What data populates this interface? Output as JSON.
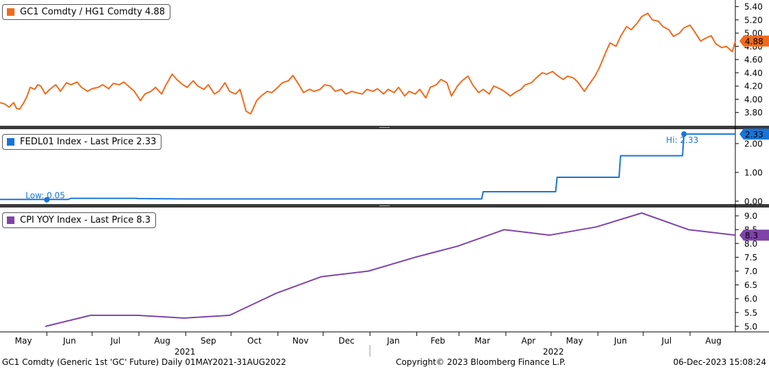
{
  "chart_data": {
    "type": "line",
    "x_range": [
      "2021-05-01",
      "2022-08-31"
    ],
    "x_month_labels": [
      "May",
      "Jun",
      "Jul",
      "Aug",
      "Sep",
      "Oct",
      "Nov",
      "Dec",
      "Jan",
      "Feb",
      "Mar",
      "Apr",
      "May",
      "Jun",
      "Jul",
      "Aug"
    ],
    "x_year_labels": [
      "2021",
      "2022"
    ],
    "panels": [
      {
        "legend": "GC1 Comdty / HG1 Comdty 4.88",
        "color": "#f26a1b",
        "last_label": "4.88",
        "ylim": [
          3.6,
          5.5
        ],
        "yticks": [
          "5.40",
          "5.20",
          "5.00",
          "4.80",
          "4.60",
          "4.40",
          "4.20",
          "4.00",
          "3.80"
        ],
        "series": {
          "x": [
            "2021-05-01",
            "2021-05-04",
            "2021-05-07",
            "2021-05-10",
            "2021-05-12",
            "2021-05-14",
            "2021-05-17",
            "2021-05-19",
            "2021-05-21",
            "2021-05-24",
            "2021-05-26",
            "2021-05-28",
            "2021-05-31",
            "2021-06-03",
            "2021-06-07",
            "2021-06-10",
            "2021-06-14",
            "2021-06-17",
            "2021-06-21",
            "2021-06-24",
            "2021-06-28",
            "2021-07-01",
            "2021-07-05",
            "2021-07-08",
            "2021-07-12",
            "2021-07-15",
            "2021-07-19",
            "2021-07-22",
            "2021-07-26",
            "2021-07-29",
            "2021-08-02",
            "2021-08-05",
            "2021-08-09",
            "2021-08-12",
            "2021-08-16",
            "2021-08-19",
            "2021-08-23",
            "2021-08-26",
            "2021-08-30",
            "2021-09-02",
            "2021-09-06",
            "2021-09-09",
            "2021-09-13",
            "2021-09-16",
            "2021-09-20",
            "2021-09-23",
            "2021-09-27",
            "2021-09-30",
            "2021-10-04",
            "2021-10-07",
            "2021-10-11",
            "2021-10-14",
            "2021-10-18",
            "2021-10-21",
            "2021-10-25",
            "2021-10-28",
            "2021-11-01",
            "2021-11-04",
            "2021-11-08",
            "2021-11-11",
            "2021-11-15",
            "2021-11-18",
            "2021-11-22",
            "2021-11-25",
            "2021-11-29",
            "2021-12-02",
            "2021-12-06",
            "2021-12-09",
            "2021-12-13",
            "2021-12-16",
            "2021-12-20",
            "2021-12-23",
            "2021-12-27",
            "2021-12-30",
            "2022-01-03",
            "2022-01-06",
            "2022-01-10",
            "2022-01-13",
            "2022-01-17",
            "2022-01-20",
            "2022-01-24",
            "2022-01-27",
            "2022-01-31",
            "2022-02-03",
            "2022-02-07",
            "2022-02-10",
            "2022-02-14",
            "2022-02-17",
            "2022-02-21",
            "2022-02-24",
            "2022-02-28",
            "2022-03-03",
            "2022-03-07",
            "2022-03-10",
            "2022-03-14",
            "2022-03-17",
            "2022-03-21",
            "2022-03-24",
            "2022-03-28",
            "2022-03-31",
            "2022-04-04",
            "2022-04-07",
            "2022-04-11",
            "2022-04-14",
            "2022-04-18",
            "2022-04-21",
            "2022-04-25",
            "2022-04-28",
            "2022-05-02",
            "2022-05-05",
            "2022-05-09",
            "2022-05-12",
            "2022-05-16",
            "2022-05-19",
            "2022-05-23",
            "2022-05-26",
            "2022-05-30",
            "2022-06-02",
            "2022-06-06",
            "2022-06-09",
            "2022-06-13",
            "2022-06-16",
            "2022-06-20",
            "2022-06-23",
            "2022-06-27",
            "2022-06-30",
            "2022-07-04",
            "2022-07-07",
            "2022-07-11",
            "2022-07-14",
            "2022-07-18",
            "2022-07-21",
            "2022-07-25",
            "2022-07-28",
            "2022-08-01",
            "2022-08-04",
            "2022-08-08",
            "2022-08-11",
            "2022-08-15",
            "2022-08-18",
            "2022-08-22",
            "2022-08-25",
            "2022-08-29",
            "2022-08-31"
          ],
          "y": [
            3.95,
            3.93,
            3.88,
            3.95,
            3.86,
            3.85,
            3.96,
            4.05,
            4.18,
            4.15,
            4.22,
            4.2,
            4.08,
            4.15,
            4.22,
            4.12,
            4.25,
            4.22,
            4.26,
            4.18,
            4.12,
            4.16,
            4.18,
            4.22,
            4.16,
            4.24,
            4.22,
            4.26,
            4.18,
            4.12,
            3.98,
            4.08,
            4.12,
            4.18,
            4.08,
            4.22,
            4.38,
            4.3,
            4.22,
            4.18,
            4.28,
            4.2,
            4.15,
            4.22,
            4.08,
            4.12,
            4.25,
            4.12,
            4.08,
            4.15,
            3.82,
            3.78,
            3.98,
            4.05,
            4.12,
            4.1,
            4.18,
            4.25,
            4.28,
            4.36,
            4.22,
            4.1,
            4.15,
            4.12,
            4.15,
            4.22,
            4.2,
            4.12,
            4.15,
            4.08,
            4.12,
            4.1,
            4.08,
            4.15,
            4.12,
            4.16,
            4.08,
            4.15,
            4.1,
            4.18,
            4.05,
            4.12,
            4.08,
            4.15,
            4.02,
            4.18,
            4.22,
            4.3,
            4.25,
            4.05,
            4.2,
            4.28,
            4.35,
            4.22,
            4.1,
            4.15,
            4.08,
            4.2,
            4.16,
            4.12,
            4.05,
            4.1,
            4.15,
            4.22,
            4.25,
            4.32,
            4.4,
            4.38,
            4.42,
            4.36,
            4.3,
            4.35,
            4.32,
            4.25,
            4.12,
            4.22,
            4.35,
            4.48,
            4.7,
            4.85,
            4.8,
            4.95,
            5.1,
            5.05,
            5.15,
            5.25,
            5.3,
            5.2,
            5.18,
            5.1,
            5.05,
            4.95,
            5.0,
            5.08,
            5.12,
            5.02,
            4.88,
            4.92,
            4.96,
            4.84,
            4.78,
            4.8,
            4.72,
            4.88
          ],
          "low": null,
          "high": null
        }
      },
      {
        "legend": "FEDL01 Index - Last Price 2.33",
        "color": "#1874d7",
        "last_label": "2.33",
        "ylim": [
          -0.1,
          2.5
        ],
        "yticks": [
          "2.00",
          "1.00",
          "0.00"
        ],
        "series": {
          "x": [
            "2021-05-01",
            "2021-06-15",
            "2021-06-17",
            "2021-07-30",
            "2021-08-01",
            "2021-09-01",
            "2021-09-03",
            "2021-10-01",
            "2021-10-03",
            "2022-03-16",
            "2022-03-17",
            "2022-05-04",
            "2022-05-05",
            "2022-06-15",
            "2022-06-16",
            "2022-07-27",
            "2022-07-28",
            "2022-08-31"
          ],
          "y": [
            0.06,
            0.06,
            0.1,
            0.1,
            0.09,
            0.08,
            0.08,
            0.08,
            0.08,
            0.08,
            0.33,
            0.33,
            0.83,
            0.83,
            1.58,
            1.58,
            2.33,
            2.33
          ],
          "low": {
            "x": "2021-06-01",
            "y": 0.05,
            "label": "Low: 0.05"
          },
          "high": {
            "x": "2022-07-28",
            "y": 2.33,
            "label": "Hi: 2.33"
          }
        }
      },
      {
        "legend": "CPI YOY Index - Last Price 8.3",
        "color": "#7e44a8",
        "last_label": "8.3",
        "ylim": [
          4.8,
          9.3
        ],
        "yticks": [
          "9.0",
          "8.5",
          "8.0",
          "7.5",
          "7.0",
          "6.5",
          "6.0",
          "5.5",
          "5.0"
        ],
        "series": {
          "x": [
            "2021-05-31",
            "2021-06-30",
            "2021-07-31",
            "2021-08-31",
            "2021-09-30",
            "2021-10-31",
            "2021-11-30",
            "2021-12-31",
            "2022-01-31",
            "2022-02-28",
            "2022-03-31",
            "2022-04-30",
            "2022-05-31",
            "2022-06-30",
            "2022-07-31",
            "2022-08-31"
          ],
          "y": [
            5.0,
            5.4,
            5.4,
            5.3,
            5.4,
            6.2,
            6.8,
            7.0,
            7.5,
            7.9,
            8.5,
            8.3,
            8.6,
            9.1,
            8.5,
            8.3
          ],
          "low": null,
          "high": null
        }
      }
    ]
  },
  "footer": {
    "left": "GC1 Comdty (Generic 1st 'GC' Future)  Daily 01MAY2021-31AUG2022",
    "center": "Copyright© 2023 Bloomberg Finance L.P.",
    "right": "06-Dec-2023 15:08:24"
  }
}
